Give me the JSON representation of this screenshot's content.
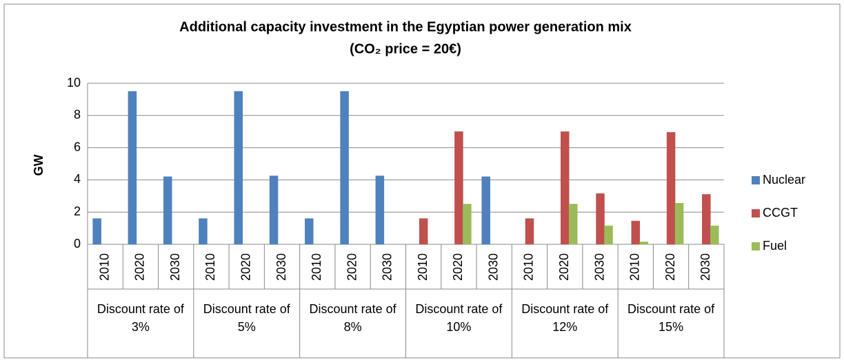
{
  "chart_data": {
    "type": "bar",
    "title": [
      "Additional capacity investment in the Egyptian power generation mix",
      "(CO₂ price = 20€)"
    ],
    "ylabel": "GW",
    "categories": [
      "2010",
      "2020",
      "2030",
      "2010",
      "2020",
      "2030",
      "2010",
      "2020",
      "2030",
      "2010",
      "2020",
      "2030",
      "2010",
      "2020",
      "2030",
      "2010",
      "2020",
      "2030"
    ],
    "category_groups": [
      "Discount rate of 3%",
      "Discount rate of 5%",
      "Discount rate of 8%",
      "Discount rate of 10%",
      "Discount rate of 12%",
      "Discount rate of 15%"
    ],
    "series": [
      {
        "name": "Nuclear",
        "color": "#4f81bd",
        "values": [
          1.6,
          9.5,
          4.2,
          1.6,
          9.5,
          4.25,
          1.6,
          9.5,
          4.25,
          0,
          0,
          4.2,
          0,
          0,
          0,
          0,
          0,
          0
        ]
      },
      {
        "name": "CCGT",
        "color": "#c0504d",
        "values": [
          0,
          0,
          0,
          0,
          0,
          0,
          0,
          0,
          0,
          1.6,
          7.0,
          0,
          1.6,
          7.0,
          3.15,
          1.45,
          6.95,
          3.1
        ]
      },
      {
        "name": "Fuel",
        "color": "#9bbb59",
        "values": [
          0,
          0,
          0,
          0,
          0,
          0,
          0,
          0,
          0,
          0,
          2.5,
          0,
          0,
          2.5,
          1.15,
          0.15,
          2.55,
          1.15
        ]
      }
    ],
    "ylim": [
      0,
      10
    ],
    "yticks": [
      0,
      2,
      4,
      6,
      8,
      10
    ],
    "grid": true,
    "legend": "right"
  }
}
